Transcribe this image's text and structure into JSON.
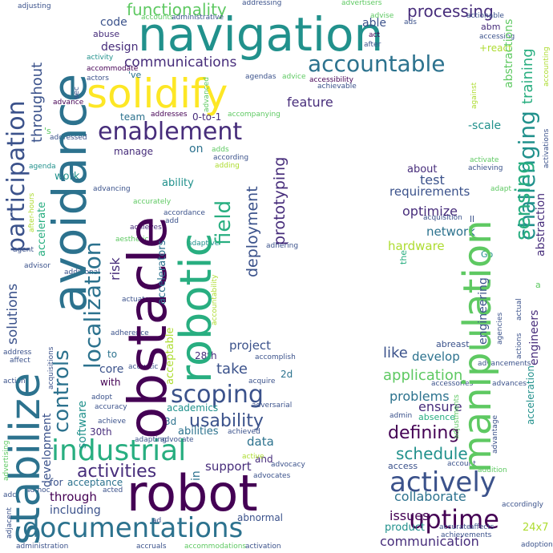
{
  "words": {
    "navigation": "navigation",
    "avoidance": "avoidance",
    "obstacle": "obstacle",
    "robotic": "robotic",
    "robot": "robot",
    "stabilize": "stabilize",
    "solidify": "solidify",
    "manipulation": "manipulation",
    "industrial": "industrial",
    "documentations": "documentations",
    "enablement": "enablement",
    "participation": "participation",
    "localization": "localization",
    "scoping": "scoping",
    "actively": "actively",
    "uptime": "uptime",
    "accountable": "accountable",
    "challenging": "challenging",
    "sensing": "sensing",
    "controls": "controls",
    "field": "field",
    "functionality": "functionality",
    "processing": "processing",
    "communications": "communications",
    "communication": "communication",
    "deployment": "deployment",
    "prototyping": "prototyping",
    "throughout": "throughout",
    "activities": "activities",
    "usability": "usability",
    "schedule": "schedule",
    "defining": "defining",
    "collaborate": "collaborate",
    "application": "application",
    "problems": "problems",
    "requirements": "requirements",
    "optimize": "optimize",
    "network": "network",
    "hardware": "hardware",
    "training": "training",
    "abstractions": "abstractions",
    "abstraction": "abstraction",
    "engineering": "engineering",
    "engineers": "engineers",
    "solutions": "solutions",
    "software": "software",
    "development": "development",
    "project": "project",
    "feature": "feature",
    "take": "take",
    "core": "core",
    "team": "team",
    "manage": "manage",
    "design": "design",
    "code": "code",
    "able": "able",
    "abm": "abm",
    "react": "+react",
    "ability": "ability",
    "abilities": "abilities",
    "risk": "risk",
    "through": "through",
    "including": "including",
    "issues": "issues",
    "product": "product",
    "ensure": "ensure",
    "develop": "develop",
    "like": "like",
    "test": "test",
    "about": "about",
    "scale": "-scale",
    "accelerators": "accelerators",
    "accelerate": "accelerate",
    "acceleration": "acceleration",
    "academics": "academics",
    "data": "data",
    "support": "support",
    "abnormal": "abnormal",
    "x247": "24x7",
    "work": "work",
    "abuse": "abuse",
    "o2o": "0-to-1",
    "on": "on",
    "ve": "'ve",
    "s": "'s",
    "d2": "2d",
    "d3": "3d",
    "th28": "28th",
    "th30": "30th",
    "to": "to",
    "with": "with",
    "in": "in",
    "and": "and",
    "for": "for",
    "acceptance": "acceptance",
    "acceptable": "acceptable",
    "access": "access",
    "absence": "absence",
    "abreast": "abreast",
    "the": "the",
    "ll": "ll",
    "go": "Go",
    "a": "a",
    "adjusting": "adjusting",
    "addressing": "addressing",
    "advertisers": "advertisers",
    "advise": "advise",
    "actionable": "actionable",
    "accounts": "accounts",
    "administrative": "administrative",
    "act": "act",
    "after": "after",
    "ads": "ads",
    "accessing": "accessing",
    "activity": "activity",
    "accommodate": "accommodate",
    "actors": "actors",
    "agendas": "agendas",
    "advice": "advice",
    "accessibility": "accessibility",
    "achievable": "achievable",
    "advance": "advance",
    "aec": "aec",
    "addresses": "addresses",
    "accompanying": "accompanying",
    "addressed": "addressed",
    "adds": "adds",
    "according": "according",
    "adding": "adding",
    "activate": "activate",
    "achieving": "achieving",
    "adapt": "adapt",
    "agenda": "agenda",
    "afterhours": "after-hours",
    "advancing": "advancing",
    "accurately": "accurately",
    "accordance": "accordance",
    "add": "add",
    "achieves": "achieves",
    "adaptive": "adaptive",
    "adhering": "adhering",
    "agent": "agent",
    "aesthetic": "aesthetic",
    "advisor": "advisor",
    "additional": "additional",
    "actuators": "actuators",
    "actual": "actual",
    "accountability": "accountability",
    "adherence": "adherence",
    "accomplish": "accomplish",
    "acoustic": "acoustic",
    "acquire": "acquire",
    "address": "address",
    "affect": "affect",
    "acquisitions": "acquisitions",
    "acquisition": "acquisition",
    "action": "action",
    "adversarial": "adversarial",
    "accessories": "accessories",
    "advances": "advances",
    "advancements": "advancements",
    "adopt": "adopt",
    "accuracy": "accuracy",
    "achieved": "achieved",
    "achieve": "achieve",
    "adapting": "adapting",
    "advocate": "advocate",
    "admin": "admin",
    "adjustments": "adjustments",
    "advantage": "advantage",
    "active": "active",
    "advocacy": "advocacy",
    "advocates": "advocates",
    "acted": "acted",
    "account": "account",
    "addition": "addition",
    "advertising": "advertising",
    "adhoc": "ad-hoc",
    "adc": "adc",
    "adjacent": "adjacent",
    "ad": "ad",
    "accurate": "accurate",
    "affects": "affects",
    "accordingly": "accordingly",
    "achievements": "achievements",
    "administration": "administration",
    "accruals": "accruals",
    "accommodations": "accommodations",
    "activation": "activation",
    "adoption": "adoption",
    "activations": "activations",
    "advanced": "advanced",
    "against": "against",
    "agencies": "agencies",
    "actions": "actions",
    "accounting": "accounting"
  },
  "colors": {
    "dark_purple": "#440154",
    "purple": "#472d7b",
    "indigo": "#3b528b",
    "blue": "#2c728e",
    "teal": "#21918c",
    "green_teal": "#28ae80",
    "green": "#5ec962",
    "lime": "#addc30",
    "yellow": "#fde725"
  }
}
